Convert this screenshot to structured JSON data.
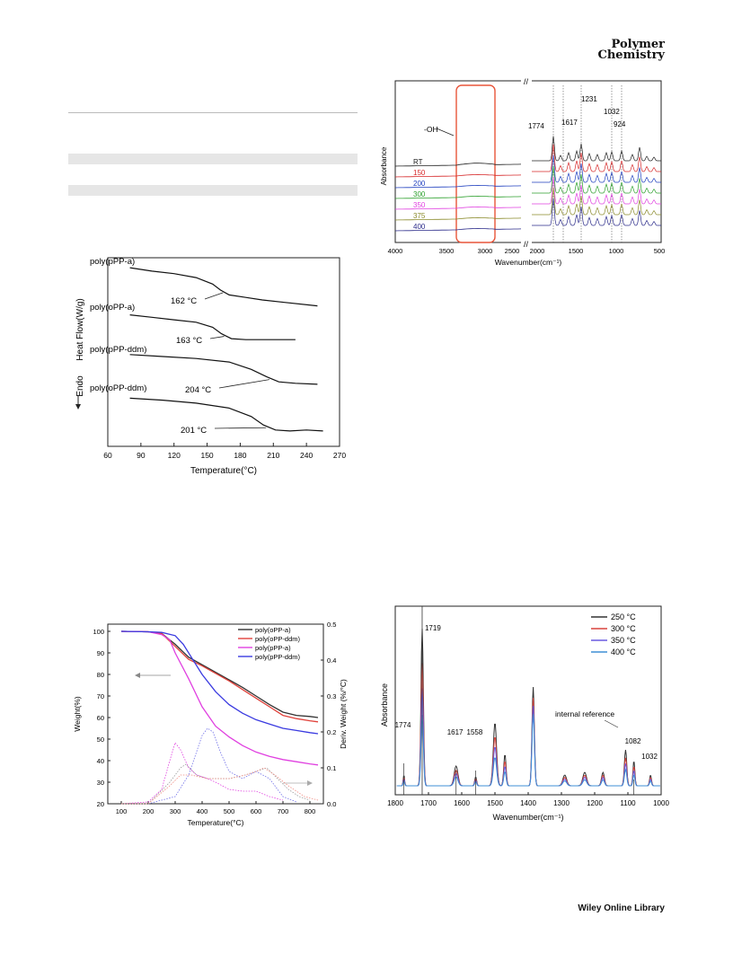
{
  "header": {
    "journal_line1": "Polymer",
    "journal_line2": "Chemistry"
  },
  "footer": {
    "brand": "Wiley Online Library"
  },
  "charts": {
    "dsc": {
      "type": "line",
      "xlabel": "Temperature(°C)",
      "ylabel": "Heat Flow(W/g)",
      "endo_label": "Endo",
      "xlim": [
        60,
        270
      ],
      "xticks": [
        "60",
        "90",
        "120",
        "150",
        "180",
        "210",
        "240",
        "270"
      ],
      "series": [
        {
          "name": "poly(pPP-a)",
          "tg": "162 °C",
          "x": [
            80,
            100,
            120,
            140,
            155,
            162,
            170,
            185,
            200,
            220,
            250
          ],
          "y": [
            3.05,
            2.98,
            2.93,
            2.85,
            2.72,
            2.6,
            2.5,
            2.45,
            2.4,
            2.35,
            2.28
          ]
        },
        {
          "name": "poly(oPP-a)",
          "tg": "163 °C",
          "x": [
            80,
            100,
            120,
            140,
            155,
            163,
            172,
            185,
            200,
            230
          ],
          "y": [
            2.1,
            2.05,
            2.0,
            1.95,
            1.85,
            1.72,
            1.62,
            1.6,
            1.6,
            1.6
          ]
        },
        {
          "name": "poly(pPP-ddm)",
          "tg": "204 °C",
          "x": [
            80,
            110,
            140,
            170,
            190,
            204,
            215,
            230,
            250
          ],
          "y": [
            1.3,
            1.26,
            1.22,
            1.15,
            1.0,
            0.85,
            0.75,
            0.72,
            0.7
          ]
        },
        {
          "name": "poly(oPP-ddm)",
          "tg": "201 °C",
          "x": [
            80,
            110,
            140,
            170,
            190,
            201,
            212,
            225,
            240,
            255
          ],
          "y": [
            0.42,
            0.38,
            0.32,
            0.22,
            0.05,
            -0.12,
            -0.22,
            -0.24,
            -0.22,
            -0.24
          ]
        }
      ]
    },
    "ftir1": {
      "type": "line",
      "xlabel": "Wavenumber(cm⁻¹)",
      "ylabel": "Absorbance",
      "xticks": [
        "4000",
        "3500",
        "3000",
        "2500",
        "2000",
        "1500",
        "1000",
        "500"
      ],
      "oh_label": "-OH",
      "peak_labels": [
        "1774",
        "1617",
        "1231",
        "1032",
        "924"
      ],
      "series": [
        {
          "name": "RT",
          "color": "#222222"
        },
        {
          "name": "150",
          "color": "#d62728"
        },
        {
          "name": "200",
          "color": "#1f3fbf"
        },
        {
          "name": "300",
          "color": "#2ca02c"
        },
        {
          "name": "350",
          "color": "#e040e0"
        },
        {
          "name": "375",
          "color": "#8a8a2a"
        },
        {
          "name": "400",
          "color": "#2b2b8a"
        }
      ]
    },
    "tga": {
      "type": "line",
      "xlabel": "Temperature(°C)",
      "ylabel": "Weight(%)",
      "y2label": "Deriv. Weight (%/°C)",
      "xlim": [
        50,
        850
      ],
      "ylim": [
        20,
        100
      ],
      "y2lim": [
        0,
        0.5
      ],
      "xticks": [
        "100",
        "200",
        "300",
        "400",
        "500",
        "600",
        "700",
        "800"
      ],
      "yticks": [
        "20",
        "30",
        "40",
        "50",
        "60",
        "70",
        "80",
        "90",
        "100"
      ],
      "y2ticks": [
        "0.0",
        "0.1",
        "0.2",
        "0.3",
        "0.4",
        "0.5"
      ],
      "series": [
        {
          "name": "poly(oPP-a)",
          "color": "#333333",
          "x": [
            100,
            200,
            250,
            300,
            350,
            400,
            450,
            500,
            550,
            600,
            650,
            700,
            750,
            800,
            830
          ],
          "y": [
            100,
            99.8,
            99,
            94,
            88,
            84.5,
            81,
            77.5,
            74,
            70,
            66,
            62.5,
            61,
            60.5,
            60
          ]
        },
        {
          "name": "poly(oPP-ddm)",
          "color": "#e0413a",
          "x": [
            100,
            200,
            250,
            300,
            350,
            400,
            450,
            500,
            550,
            600,
            650,
            700,
            750,
            800,
            830
          ],
          "y": [
            100,
            99.8,
            99,
            93,
            87,
            84,
            80.5,
            77,
            73,
            69,
            65,
            61,
            59.5,
            58.5,
            58
          ]
        },
        {
          "name": "poly(pPP-a)",
          "color": "#e040e0",
          "x": [
            100,
            200,
            250,
            280,
            300,
            350,
            400,
            450,
            500,
            550,
            600,
            650,
            700,
            750,
            800,
            830
          ],
          "y": [
            100,
            99.8,
            98.5,
            96,
            90,
            78,
            65,
            56,
            51,
            47,
            44,
            42,
            40.5,
            39.5,
            38.5,
            38
          ]
        },
        {
          "name": "poly(pPP-ddm)",
          "color": "#3a3ae0",
          "x": [
            100,
            200,
            250,
            300,
            330,
            360,
            400,
            450,
            500,
            550,
            600,
            650,
            700,
            750,
            800,
            830
          ],
          "y": [
            100,
            99.8,
            99.5,
            98,
            94,
            88,
            80,
            72,
            66,
            62,
            59,
            57,
            55,
            54,
            53,
            52.5
          ]
        }
      ],
      "deriv_series": [
        {
          "color": "#e040e0",
          "x": [
            100,
            200,
            250,
            280,
            300,
            320,
            350,
            380,
            420,
            450,
            500,
            550,
            600,
            650,
            700
          ],
          "d": [
            0.0,
            0.005,
            0.04,
            0.12,
            0.17,
            0.15,
            0.1,
            0.08,
            0.07,
            0.06,
            0.04,
            0.035,
            0.035,
            0.02,
            0.01
          ]
        },
        {
          "color": "#7070e8",
          "x": [
            100,
            200,
            300,
            350,
            400,
            420,
            440,
            470,
            500,
            550,
            600,
            650,
            700,
            750
          ],
          "d": [
            0.0,
            0.0,
            0.02,
            0.08,
            0.19,
            0.21,
            0.2,
            0.14,
            0.09,
            0.07,
            0.09,
            0.07,
            0.02,
            0.005
          ]
        },
        {
          "color": "#999999",
          "x": [
            100,
            200,
            280,
            320,
            340,
            380,
            420,
            500,
            560,
            600,
            640,
            680,
            720,
            760,
            800
          ],
          "d": [
            0.0,
            0.0,
            0.06,
            0.1,
            0.11,
            0.08,
            0.07,
            0.07,
            0.08,
            0.09,
            0.1,
            0.07,
            0.04,
            0.02,
            0.01
          ]
        },
        {
          "color": "#f08a80",
          "x": [
            100,
            200,
            280,
            320,
            360,
            420,
            500,
            560,
            600,
            630,
            670,
            720,
            780,
            830
          ],
          "d": [
            0.0,
            0.0,
            0.05,
            0.08,
            0.08,
            0.07,
            0.07,
            0.08,
            0.09,
            0.1,
            0.08,
            0.05,
            0.02,
            0.01
          ]
        }
      ]
    },
    "ftir2": {
      "type": "line",
      "xlabel": "Wavenumber(cm⁻¹)",
      "ylabel": "Absorbance",
      "xlim": [
        1800,
        1000
      ],
      "xticks": [
        "1800",
        "1700",
        "1600",
        "1500",
        "1400",
        "1300",
        "1200",
        "1100",
        "1000"
      ],
      "peak_labels": [
        "1719",
        "1774",
        "1617",
        "1558",
        "1082",
        "1032"
      ],
      "annotation": "internal reference",
      "series": [
        {
          "name": "250 °C",
          "color": "#333333",
          "scale": 1.0
        },
        {
          "name": "300 °C",
          "color": "#d9443d",
          "scale": 0.78
        },
        {
          "name": "350 °C",
          "color": "#6a5ae0",
          "scale": 0.62
        },
        {
          "name": "400 °C",
          "color": "#3f8fd6",
          "scale": 0.45
        }
      ]
    }
  }
}
